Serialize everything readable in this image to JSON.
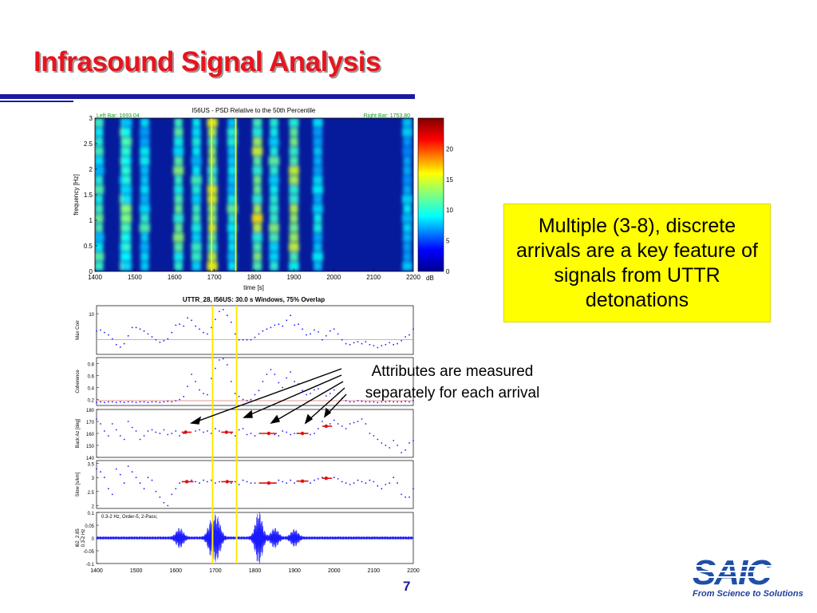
{
  "slide": {
    "title": "Infrasound Signal Analysis",
    "page_number": "7",
    "callout_text": "Multiple (3-8), discrete arrivals are a key feature of signals from UTTR detonations",
    "annotation_line1": "Attributes are measured",
    "annotation_line2": "separately for each arrival",
    "logo_text": "SAIC",
    "logo_tagline": "From Science to Solutions"
  },
  "colors": {
    "title": "#e8141d",
    "rule": "#1a1aa0",
    "callout_bg": "#ffff00",
    "trace": "#1a1aff",
    "highlight": "#ffe800",
    "arrival": "#e01010",
    "logo": "#1f4fa8"
  },
  "chart_data": [
    {
      "type": "heatmap",
      "title": "I56US - PSD Relative to the  50th Percentile",
      "left_bar_label": "Left Bar: 1693.04",
      "right_bar_label": "Right Bar: 1753.80",
      "left_bar": 1693.04,
      "right_bar": 1753.8,
      "xlabel": "time [s]",
      "ylabel": "frequency [Hz]",
      "xlim": [
        1400,
        2200
      ],
      "ylim": [
        0,
        3
      ],
      "xticks": [
        "1400",
        "1500",
        "1600",
        "1700",
        "1800",
        "1900",
        "2000",
        "2100",
        "2200"
      ],
      "yticks": [
        "0",
        "0.5",
        "1",
        "1.5",
        "2",
        "2.5",
        "3"
      ],
      "colorbar": {
        "label": "dB",
        "range": [
          0,
          25
        ],
        "ticks": [
          "0",
          "5",
          "10",
          "15",
          "20"
        ]
      },
      "energy_columns": [
        {
          "t": 1410,
          "strength": 0.55
        },
        {
          "t": 1475,
          "strength": 0.6
        },
        {
          "t": 1480,
          "strength": 0.55
        },
        {
          "t": 1525,
          "strength": 0.4
        },
        {
          "t": 1610,
          "strength": 0.65
        },
        {
          "t": 1655,
          "strength": 0.5
        },
        {
          "t": 1695,
          "strength": 0.85
        },
        {
          "t": 1745,
          "strength": 0.45
        },
        {
          "t": 1808,
          "strength": 0.8
        },
        {
          "t": 1850,
          "strength": 0.55
        },
        {
          "t": 1900,
          "strength": 0.8
        },
        {
          "t": 1960,
          "strength": 0.35
        },
        {
          "t": 2185,
          "strength": 0.3
        }
      ]
    },
    {
      "type": "scatter",
      "title": "UTTR_28, I56US: 30.0 s Windows, 75% Overlap",
      "panels": [
        {
          "ylabel": "Max Corr",
          "yticks": [
            "10"
          ],
          "ylim": [
            0,
            1
          ],
          "threshold": 0.3,
          "series_x": [
            1400,
            1410,
            1420,
            1430,
            1440,
            1450,
            1460,
            1470,
            1480,
            1490,
            1500,
            1510,
            1520,
            1530,
            1540,
            1550,
            1560,
            1570,
            1580,
            1590,
            1600,
            1610,
            1620,
            1630,
            1640,
            1650,
            1660,
            1670,
            1680,
            1690,
            1700,
            1710,
            1720,
            1730,
            1740,
            1750,
            1760,
            1770,
            1780,
            1790,
            1800,
            1810,
            1820,
            1830,
            1840,
            1850,
            1860,
            1870,
            1880,
            1890,
            1900,
            1910,
            1920,
            1930,
            1940,
            1950,
            1960,
            1970,
            1980,
            1990,
            2000,
            2010,
            2020,
            2030,
            2040,
            2050,
            2060,
            2070,
            2080,
            2090,
            2100,
            2110,
            2120,
            2130,
            2140,
            2150,
            2160,
            2170,
            2180,
            2190,
            2200
          ],
          "series_y": [
            0.48,
            0.5,
            0.45,
            0.4,
            0.32,
            0.2,
            0.15,
            0.22,
            0.38,
            0.55,
            0.55,
            0.52,
            0.48,
            0.42,
            0.36,
            0.3,
            0.25,
            0.28,
            0.32,
            0.45,
            0.6,
            0.62,
            0.58,
            0.75,
            0.7,
            0.58,
            0.52,
            0.45,
            0.42,
            0.55,
            0.72,
            0.88,
            0.92,
            0.8,
            0.66,
            0.42,
            0.3,
            0.3,
            0.3,
            0.3,
            0.35,
            0.42,
            0.48,
            0.52,
            0.55,
            0.6,
            0.62,
            0.58,
            0.7,
            0.8,
            0.6,
            0.62,
            0.52,
            0.4,
            0.42,
            0.5,
            0.46,
            0.3,
            0.38,
            0.48,
            0.52,
            0.42,
            0.3,
            0.22,
            0.2,
            0.24,
            0.26,
            0.22,
            0.26,
            0.2,
            0.18,
            0.14,
            0.18,
            0.2,
            0.24,
            0.2,
            0.22,
            0.28,
            0.36,
            0.4,
            0.52
          ]
        },
        {
          "ylabel": "Coherence",
          "yticks": [
            "0.2",
            "0.4",
            "0.6",
            "0.8"
          ],
          "ylim": [
            0.1,
            0.9
          ],
          "threshold": 0.18,
          "series_x": [
            1400,
            1410,
            1420,
            1430,
            1440,
            1450,
            1460,
            1470,
            1480,
            1490,
            1500,
            1510,
            1520,
            1530,
            1540,
            1550,
            1560,
            1570,
            1580,
            1590,
            1600,
            1610,
            1620,
            1630,
            1640,
            1650,
            1660,
            1670,
            1680,
            1690,
            1700,
            1710,
            1720,
            1730,
            1740,
            1750,
            1760,
            1770,
            1780,
            1790,
            1800,
            1810,
            1820,
            1830,
            1840,
            1850,
            1860,
            1870,
            1880,
            1890,
            1900,
            1910,
            1920,
            1930,
            1940,
            1950,
            1960,
            1970,
            1980,
            1990,
            2000,
            2010,
            2020,
            2030,
            2040,
            2050,
            2060,
            2070,
            2080,
            2090,
            2100,
            2110,
            2120,
            2130,
            2140,
            2150,
            2160,
            2170,
            2180,
            2190,
            2200
          ],
          "series_y": [
            0.15,
            0.16,
            0.15,
            0.16,
            0.16,
            0.15,
            0.16,
            0.15,
            0.16,
            0.16,
            0.15,
            0.16,
            0.16,
            0.15,
            0.16,
            0.16,
            0.15,
            0.16,
            0.17,
            0.16,
            0.18,
            0.2,
            0.25,
            0.42,
            0.62,
            0.5,
            0.36,
            0.3,
            0.28,
            0.55,
            0.72,
            0.86,
            0.88,
            0.78,
            0.5,
            0.3,
            0.25,
            0.2,
            0.18,
            0.2,
            0.28,
            0.35,
            0.5,
            0.62,
            0.7,
            0.62,
            0.48,
            0.4,
            0.56,
            0.66,
            0.5,
            0.46,
            0.35,
            0.28,
            0.3,
            0.36,
            0.38,
            0.3,
            0.26,
            0.3,
            0.36,
            0.3,
            0.22,
            0.18,
            0.16,
            0.16,
            0.18,
            0.17,
            0.16,
            0.16,
            0.16,
            0.15,
            0.16,
            0.16,
            0.17,
            0.16,
            0.16,
            0.16,
            0.17,
            0.16,
            0.18
          ]
        },
        {
          "ylabel": "Back Az [deg]",
          "yticks": [
            "140",
            "150",
            "160",
            "170",
            "180"
          ],
          "ylim": [
            140,
            180
          ],
          "series_x": [
            1400,
            1410,
            1420,
            1430,
            1440,
            1450,
            1460,
            1470,
            1480,
            1490,
            1500,
            1510,
            1520,
            1530,
            1540,
            1550,
            1560,
            1570,
            1580,
            1590,
            1600,
            1610,
            1620,
            1650,
            1660,
            1670,
            1680,
            1690,
            1700,
            1710,
            1740,
            1750,
            1760,
            1770,
            1780,
            1790,
            1800,
            1850,
            1860,
            1870,
            1880,
            1890,
            1900,
            1940,
            1950,
            1960,
            1970,
            1990,
            2000,
            2010,
            2020,
            2030,
            2040,
            2050,
            2060,
            2070,
            2080,
            2090,
            2100,
            2110,
            2120,
            2130,
            2140,
            2150,
            2160,
            2170,
            2180,
            2190,
            2200
          ],
          "series_y": [
            172,
            168,
            162,
            158,
            168,
            163,
            158,
            155,
            170,
            165,
            162,
            155,
            158,
            162,
            163,
            161,
            160,
            163,
            159,
            160,
            162,
            158,
            160,
            162,
            163,
            161,
            162,
            160,
            164,
            162,
            160,
            158,
            163,
            164,
            159,
            160,
            158,
            159,
            158,
            162,
            161,
            159,
            160,
            159,
            160,
            164,
            170,
            168,
            171,
            168,
            166,
            164,
            168,
            169,
            170,
            172,
            168,
            160,
            158,
            155,
            152,
            150,
            148,
            154,
            150,
            144,
            146,
            152,
            154
          ],
          "arrivals": [
            {
              "t_start": 1615,
              "t_end": 1640,
              "t_mid": 1625,
              "value": 161
            },
            {
              "t_start": 1715,
              "t_end": 1745,
              "t_mid": 1728,
              "value": 161
            },
            {
              "t_start": 1810,
              "t_end": 1855,
              "t_mid": 1835,
              "value": 160
            },
            {
              "t_start": 1905,
              "t_end": 1935,
              "t_mid": 1920,
              "value": 160
            },
            {
              "t_start": 1970,
              "t_end": 1995,
              "t_mid": 1980,
              "value": 166
            }
          ]
        },
        {
          "ylabel": "Slow [s/km]",
          "yticks": [
            "2",
            "2.5",
            "3",
            "3.5"
          ],
          "ylim": [
            1.9,
            3.6
          ],
          "series_x": [
            1400,
            1410,
            1420,
            1430,
            1440,
            1450,
            1460,
            1470,
            1480,
            1490,
            1500,
            1510,
            1520,
            1530,
            1540,
            1550,
            1560,
            1570,
            1580,
            1590,
            1600,
            1610,
            1640,
            1650,
            1660,
            1670,
            1680,
            1690,
            1700,
            1710,
            1740,
            1750,
            1760,
            1770,
            1780,
            1790,
            1800,
            1850,
            1860,
            1870,
            1880,
            1890,
            1900,
            1940,
            1950,
            1960,
            1970,
            2000,
            2010,
            2020,
            2030,
            2040,
            2050,
            2060,
            2070,
            2080,
            2090,
            2100,
            2110,
            2120,
            2130,
            2140,
            2150,
            2160,
            2170,
            2180,
            2190,
            2200
          ],
          "series_y": [
            3.3,
            3.2,
            3.0,
            2.6,
            2.4,
            3.3,
            3.1,
            2.8,
            3.4,
            3.2,
            3.0,
            2.8,
            2.6,
            3.0,
            2.9,
            2.5,
            2.3,
            2.1,
            2.0,
            2.4,
            2.6,
            2.8,
            2.9,
            2.85,
            2.8,
            2.9,
            2.85,
            2.9,
            2.8,
            2.85,
            2.8,
            2.85,
            2.75,
            2.9,
            2.85,
            2.8,
            2.8,
            2.8,
            2.9,
            2.85,
            2.8,
            2.9,
            2.8,
            2.8,
            2.9,
            2.95,
            3.0,
            3.0,
            2.95,
            2.85,
            2.8,
            2.75,
            2.8,
            2.9,
            2.85,
            2.8,
            2.9,
            2.85,
            2.7,
            2.6,
            2.75,
            2.8,
            3.0,
            2.8,
            2.4,
            2.3,
            2.3,
            2.6
          ],
          "arrivals": [
            {
              "t_start": 1615,
              "t_end": 1645,
              "t_mid": 1628,
              "value": 2.85
            },
            {
              "t_start": 1715,
              "t_end": 1745,
              "t_mid": 1730,
              "value": 2.85
            },
            {
              "t_start": 1810,
              "t_end": 1855,
              "t_mid": 1835,
              "value": 2.8
            },
            {
              "t_start": 1905,
              "t_end": 1935,
              "t_mid": 1920,
              "value": 2.87
            },
            {
              "t_start": 1970,
              "t_end": 1995,
              "t_mid": 1980,
              "value": 2.97
            }
          ]
        },
        {
          "ylabel": "I62_2.85\n0.3-2 Hz",
          "yticks": [
            "-0.1",
            "-0.05",
            "0",
            "0.05",
            "0.1"
          ],
          "ylim": [
            -0.1,
            0.1
          ],
          "waveform_label": "0.3-2 Hz, Order-5, 2-Pass;",
          "bursts": [
            {
              "t": 1610,
              "amp": 0.035
            },
            {
              "t": 1690,
              "amp": 0.06
            },
            {
              "t": 1705,
              "amp": 0.07
            },
            {
              "t": 1810,
              "amp": 0.1
            },
            {
              "t": 1850,
              "amp": 0.035
            },
            {
              "t": 1900,
              "amp": 0.03
            }
          ]
        }
      ],
      "xticks": [
        "1400",
        "1500",
        "1600",
        "1700",
        "1800",
        "1900",
        "2000",
        "2100",
        "2200"
      ],
      "xlim": [
        1400,
        2200
      ],
      "markers": [
        1693.04,
        1753.8
      ]
    }
  ]
}
